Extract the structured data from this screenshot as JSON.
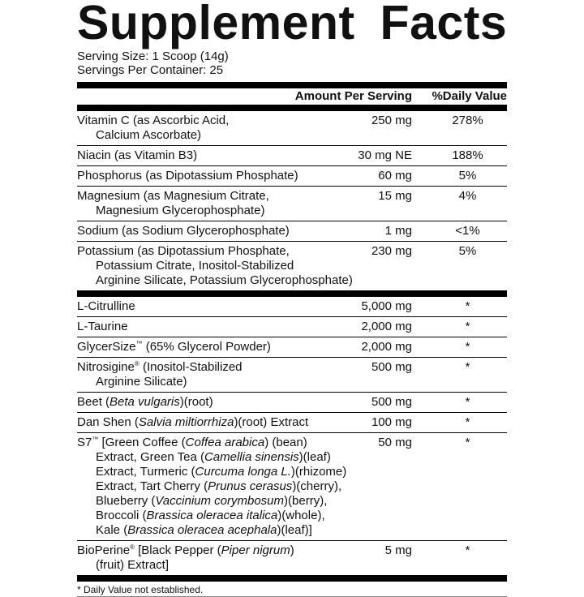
{
  "title": "Supplement Facts",
  "serving_size": "Serving Size: 1 Scoop (14g)",
  "servings_per_container": "Servings Per Container: 25",
  "header": {
    "amount": "Amount Per Serving",
    "dv": "%Daily Value"
  },
  "vitamins": [
    {
      "name": [
        [
          {
            "t": "Vitamin C (as Ascorbic Acid,"
          }
        ],
        [
          {
            "t": "Calcium Ascorbate)"
          }
        ]
      ],
      "amount": "250 mg",
      "dv": "278%"
    },
    {
      "name": [
        [
          {
            "t": "Niacin (as Vitamin B3)"
          }
        ]
      ],
      "amount": "30 mg NE",
      "dv": "188%"
    },
    {
      "name": [
        [
          {
            "t": "Phosphorus (as Dipotassium Phosphate)"
          }
        ]
      ],
      "amount": "60 mg",
      "dv": "5%"
    },
    {
      "name": [
        [
          {
            "t": "Magnesium (as Magnesium Citrate,"
          }
        ],
        [
          {
            "t": "Magnesium Glycerophosphate)"
          }
        ]
      ],
      "amount": "15 mg",
      "dv": "4%"
    },
    {
      "name": [
        [
          {
            "t": "Sodium (as Sodium Glycerophosphate)"
          }
        ]
      ],
      "amount": "1 mg",
      "dv": "<1%"
    },
    {
      "name": [
        [
          {
            "t": "Potassium (as Dipotassium Phosphate,"
          }
        ],
        [
          {
            "t": "Potassium Citrate, Inositol-Stabilized"
          }
        ],
        [
          {
            "t": "Arginine Silicate, Potassium Glycerophosphate)"
          }
        ]
      ],
      "amount": "230 mg",
      "dv": "5%"
    }
  ],
  "ingredients": [
    {
      "name": [
        [
          {
            "t": "L-Citrulline"
          }
        ]
      ],
      "amount": "5,000 mg",
      "dv": "*"
    },
    {
      "name": [
        [
          {
            "t": "L-Taurine"
          }
        ]
      ],
      "amount": "2,000 mg",
      "dv": "*"
    },
    {
      "name": [
        [
          {
            "t": "GlycerSize"
          },
          {
            "t": "™",
            "sup": true
          },
          {
            "t": " (65% Glycerol Powder)"
          }
        ]
      ],
      "amount": "2,000 mg",
      "dv": "*"
    },
    {
      "name": [
        [
          {
            "t": "Nitrosigine"
          },
          {
            "t": "®",
            "sup": true
          },
          {
            "t": " (Inositol-Stabilized"
          }
        ],
        [
          {
            "t": "Arginine Silicate)"
          }
        ]
      ],
      "amount": "500 mg",
      "dv": "*"
    },
    {
      "name": [
        [
          {
            "t": "Beet ("
          },
          {
            "t": "Beta vulgaris",
            "i": true
          },
          {
            "t": ")(root)"
          }
        ]
      ],
      "amount": "500 mg",
      "dv": "*"
    },
    {
      "name": [
        [
          {
            "t": "Dan Shen ("
          },
          {
            "t": "Salvia miltiorrhiza",
            "i": true
          },
          {
            "t": ")(root) Extract"
          }
        ]
      ],
      "amount": "100 mg",
      "dv": "*"
    },
    {
      "name": [
        [
          {
            "t": "S7"
          },
          {
            "t": "™",
            "sup": true
          },
          {
            "t": " [Green Coffee ("
          },
          {
            "t": "Coffea arabica",
            "i": true
          },
          {
            "t": ") (bean)"
          }
        ],
        [
          {
            "t": "Extract, Green Tea ("
          },
          {
            "t": "Camellia sinensis",
            "i": true
          },
          {
            "t": ")(leaf)"
          }
        ],
        [
          {
            "t": "Extract, Turmeric ("
          },
          {
            "t": "Curcuma longa L.",
            "i": true
          },
          {
            "t": ")(rhizome)"
          }
        ],
        [
          {
            "t": "Extract, Tart Cherry ("
          },
          {
            "t": "Prunus cerasus",
            "i": true
          },
          {
            "t": ")(cherry),"
          }
        ],
        [
          {
            "t": "Blueberry ("
          },
          {
            "t": "Vaccinium corymbosum",
            "i": true
          },
          {
            "t": ")(berry),"
          }
        ],
        [
          {
            "t": "Broccoli ("
          },
          {
            "t": "Brassica oleracea italica",
            "i": true
          },
          {
            "t": ")(whole),"
          }
        ],
        [
          {
            "t": "Kale ("
          },
          {
            "t": "Brassica oleracea acephala",
            "i": true
          },
          {
            "t": ")(leaf)]"
          }
        ]
      ],
      "amount": "50 mg",
      "dv": "*"
    },
    {
      "name": [
        [
          {
            "t": "BioPerine"
          },
          {
            "t": "®",
            "sup": true
          },
          {
            "t": " [Black Pepper ("
          },
          {
            "t": "Piper nigrum",
            "i": true
          },
          {
            "t": ")"
          }
        ],
        [
          {
            "t": "(fruit) Extract]"
          }
        ]
      ],
      "amount": "5 mg",
      "dv": "*"
    }
  ],
  "footnote": "* Daily Value not established."
}
